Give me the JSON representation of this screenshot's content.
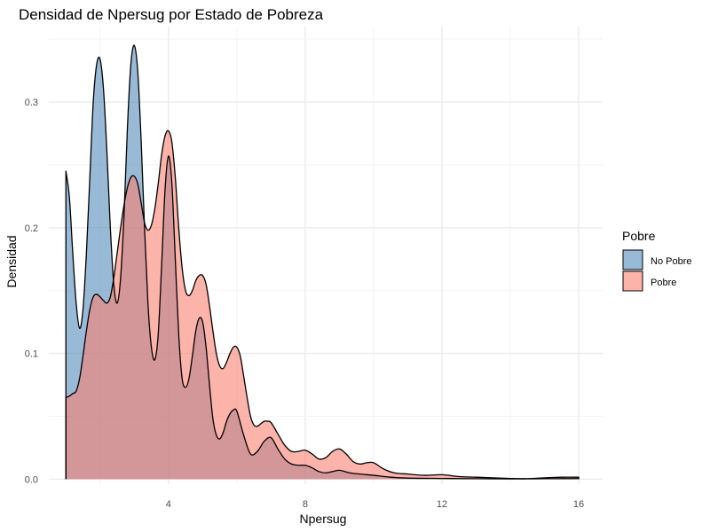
{
  "chart_data": {
    "type": "area",
    "title": "Densidad de Npersug por Estado de Pobreza",
    "xlabel": "Npersug",
    "ylabel": "Densidad",
    "xlim": [
      0.5,
      16.7
    ],
    "ylim": [
      -0.004,
      0.36
    ],
    "xticks": [
      4,
      8,
      12,
      16
    ],
    "xtick_labels": [
      "4",
      "8",
      "12",
      "16"
    ],
    "yticks": [
      0.0,
      0.1,
      0.2,
      0.3
    ],
    "ytick_labels": [
      "0.0",
      "0.1",
      "0.2",
      "0.3"
    ],
    "grid": true,
    "legend": {
      "title": "Pobre",
      "position": "right"
    },
    "series": [
      {
        "name": "No Pobre",
        "color": "#4682B4",
        "opacity": 0.55,
        "points": [
          [
            1.0,
            0.245
          ],
          [
            1.1,
            0.225
          ],
          [
            1.2,
            0.18
          ],
          [
            1.3,
            0.14
          ],
          [
            1.4,
            0.12
          ],
          [
            1.5,
            0.135
          ],
          [
            1.6,
            0.18
          ],
          [
            1.7,
            0.24
          ],
          [
            1.8,
            0.3
          ],
          [
            1.9,
            0.33
          ],
          [
            2.0,
            0.334
          ],
          [
            2.1,
            0.31
          ],
          [
            2.2,
            0.26
          ],
          [
            2.3,
            0.2
          ],
          [
            2.4,
            0.155
          ],
          [
            2.5,
            0.14
          ],
          [
            2.6,
            0.16
          ],
          [
            2.7,
            0.21
          ],
          [
            2.8,
            0.28
          ],
          [
            2.9,
            0.33
          ],
          [
            3.0,
            0.345
          ],
          [
            3.1,
            0.325
          ],
          [
            3.2,
            0.27
          ],
          [
            3.3,
            0.2
          ],
          [
            3.4,
            0.14
          ],
          [
            3.5,
            0.105
          ],
          [
            3.6,
            0.095
          ],
          [
            3.7,
            0.115
          ],
          [
            3.8,
            0.17
          ],
          [
            3.9,
            0.23
          ],
          [
            4.0,
            0.257
          ],
          [
            4.1,
            0.235
          ],
          [
            4.2,
            0.175
          ],
          [
            4.3,
            0.115
          ],
          [
            4.4,
            0.08
          ],
          [
            4.5,
            0.073
          ],
          [
            4.6,
            0.08
          ],
          [
            4.7,
            0.098
          ],
          [
            4.8,
            0.118
          ],
          [
            4.9,
            0.128
          ],
          [
            5.0,
            0.125
          ],
          [
            5.1,
            0.105
          ],
          [
            5.2,
            0.075
          ],
          [
            5.3,
            0.048
          ],
          [
            5.4,
            0.035
          ],
          [
            5.5,
            0.032
          ],
          [
            5.6,
            0.037
          ],
          [
            5.7,
            0.046
          ],
          [
            5.8,
            0.052
          ],
          [
            5.9,
            0.055
          ],
          [
            6.0,
            0.054
          ],
          [
            6.2,
            0.035
          ],
          [
            6.4,
            0.02
          ],
          [
            6.6,
            0.022
          ],
          [
            6.8,
            0.03
          ],
          [
            7.0,
            0.033
          ],
          [
            7.2,
            0.024
          ],
          [
            7.4,
            0.016
          ],
          [
            7.6,
            0.012
          ],
          [
            7.8,
            0.011
          ],
          [
            8.0,
            0.011
          ],
          [
            8.2,
            0.009
          ],
          [
            8.4,
            0.006
          ],
          [
            8.6,
            0.005
          ],
          [
            8.8,
            0.006
          ],
          [
            9.0,
            0.007
          ],
          [
            9.3,
            0.005
          ],
          [
            9.6,
            0.004
          ],
          [
            10.0,
            0.003
          ],
          [
            10.5,
            0.0015
          ],
          [
            11.0,
            0.0008
          ],
          [
            12.0,
            0.0005
          ],
          [
            13.0,
            0.0003
          ],
          [
            14.0,
            0.0002
          ],
          [
            15.0,
            0.0003
          ],
          [
            16.0,
            0.0004
          ]
        ]
      },
      {
        "name": "Pobre",
        "color": "#FA8072",
        "opacity": 0.6,
        "points": [
          [
            1.0,
            0.065
          ],
          [
            1.1,
            0.066
          ],
          [
            1.2,
            0.068
          ],
          [
            1.3,
            0.07
          ],
          [
            1.4,
            0.08
          ],
          [
            1.5,
            0.098
          ],
          [
            1.6,
            0.118
          ],
          [
            1.7,
            0.135
          ],
          [
            1.8,
            0.145
          ],
          [
            1.9,
            0.147
          ],
          [
            2.0,
            0.145
          ],
          [
            2.1,
            0.142
          ],
          [
            2.2,
            0.14
          ],
          [
            2.3,
            0.145
          ],
          [
            2.4,
            0.16
          ],
          [
            2.5,
            0.18
          ],
          [
            2.6,
            0.2
          ],
          [
            2.7,
            0.218
          ],
          [
            2.8,
            0.232
          ],
          [
            2.9,
            0.24
          ],
          [
            3.0,
            0.241
          ],
          [
            3.1,
            0.235
          ],
          [
            3.2,
            0.22
          ],
          [
            3.3,
            0.204
          ],
          [
            3.4,
            0.198
          ],
          [
            3.5,
            0.202
          ],
          [
            3.6,
            0.215
          ],
          [
            3.7,
            0.235
          ],
          [
            3.8,
            0.258
          ],
          [
            3.9,
            0.273
          ],
          [
            4.0,
            0.277
          ],
          [
            4.1,
            0.268
          ],
          [
            4.2,
            0.24
          ],
          [
            4.3,
            0.2
          ],
          [
            4.4,
            0.168
          ],
          [
            4.5,
            0.15
          ],
          [
            4.6,
            0.146
          ],
          [
            4.7,
            0.15
          ],
          [
            4.8,
            0.158
          ],
          [
            4.9,
            0.162
          ],
          [
            5.0,
            0.162
          ],
          [
            5.1,
            0.155
          ],
          [
            5.2,
            0.138
          ],
          [
            5.3,
            0.118
          ],
          [
            5.4,
            0.1
          ],
          [
            5.5,
            0.09
          ],
          [
            5.6,
            0.088
          ],
          [
            5.7,
            0.093
          ],
          [
            5.8,
            0.1
          ],
          [
            5.9,
            0.105
          ],
          [
            6.0,
            0.105
          ],
          [
            6.1,
            0.098
          ],
          [
            6.2,
            0.082
          ],
          [
            6.3,
            0.065
          ],
          [
            6.4,
            0.05
          ],
          [
            6.5,
            0.043
          ],
          [
            6.6,
            0.042
          ],
          [
            6.7,
            0.044
          ],
          [
            6.8,
            0.046
          ],
          [
            6.9,
            0.046
          ],
          [
            7.0,
            0.045
          ],
          [
            7.2,
            0.036
          ],
          [
            7.4,
            0.027
          ],
          [
            7.6,
            0.022
          ],
          [
            7.8,
            0.022
          ],
          [
            8.0,
            0.023
          ],
          [
            8.2,
            0.02
          ],
          [
            8.4,
            0.016
          ],
          [
            8.6,
            0.017
          ],
          [
            8.8,
            0.022
          ],
          [
            9.0,
            0.024
          ],
          [
            9.2,
            0.02
          ],
          [
            9.4,
            0.014
          ],
          [
            9.6,
            0.012
          ],
          [
            9.8,
            0.013
          ],
          [
            10.0,
            0.013
          ],
          [
            10.3,
            0.008
          ],
          [
            10.6,
            0.005
          ],
          [
            11.0,
            0.004
          ],
          [
            11.5,
            0.003
          ],
          [
            12.0,
            0.0035
          ],
          [
            12.5,
            0.002
          ],
          [
            13.0,
            0.0015
          ],
          [
            13.5,
            0.001
          ],
          [
            14.0,
            0.0005
          ],
          [
            14.5,
            0.0003
          ],
          [
            15.0,
            0.001
          ],
          [
            15.5,
            0.0015
          ],
          [
            16.0,
            0.0015
          ]
        ]
      }
    ]
  }
}
